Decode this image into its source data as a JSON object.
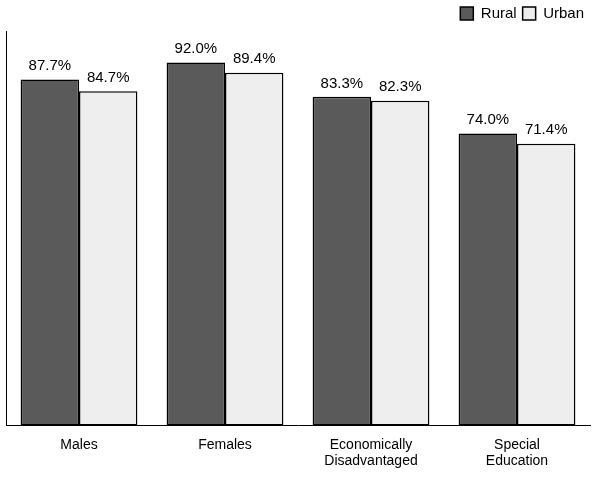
{
  "chart_data": {
    "type": "bar",
    "categories": [
      "Males",
      "Females",
      "Economically Disadvantaged",
      "Special Education"
    ],
    "series": [
      {
        "name": "Rural",
        "color": "#5a5a5a",
        "values": [
          87.7,
          92.0,
          83.3,
          74.0
        ],
        "value_labels": [
          "87.7%",
          "92.0%",
          "83.3%",
          "74.0%"
        ]
      },
      {
        "name": "Urban",
        "color": "#eeeeee",
        "values": [
          84.7,
          89.4,
          82.3,
          71.4
        ],
        "value_labels": [
          "84.7%",
          "89.4%",
          "82.3%",
          "71.4%"
        ]
      }
    ],
    "ylim": [
      0,
      100
    ],
    "grid": false,
    "legend": "top-right",
    "data_labels": true,
    "tick_labels": "x"
  }
}
